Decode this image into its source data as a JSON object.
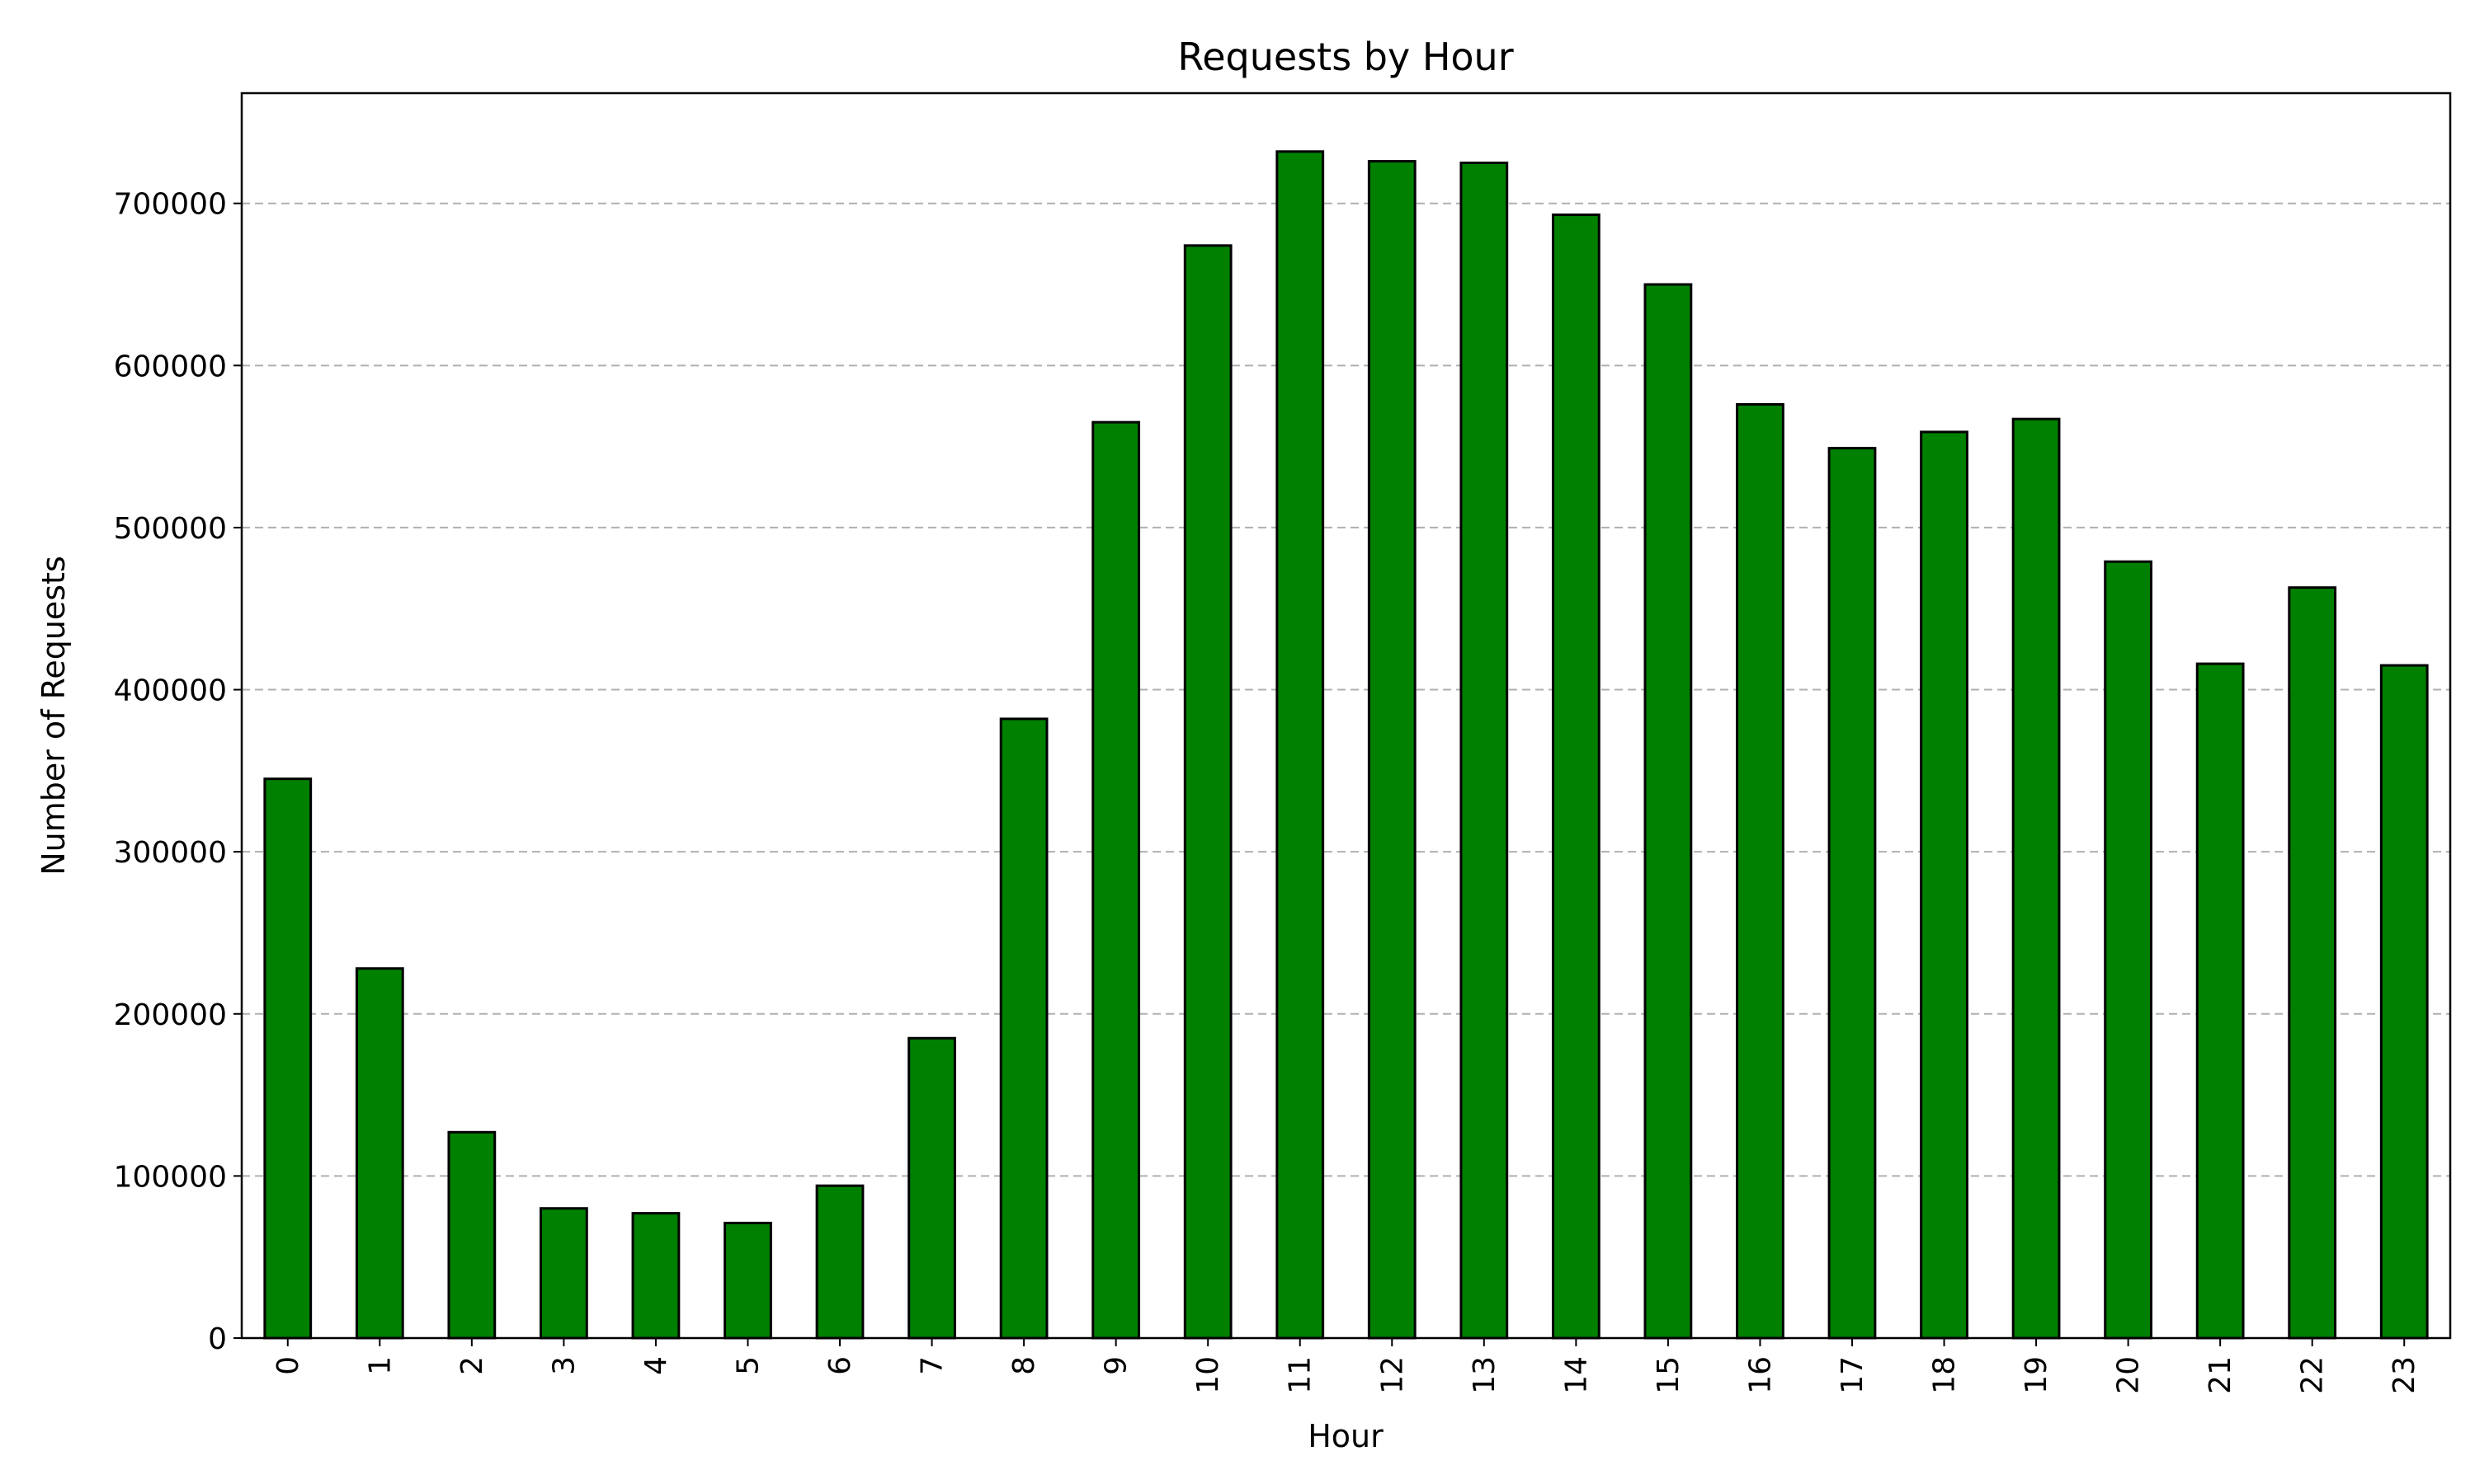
{
  "chart_data": {
    "type": "bar",
    "title": "Requests by Hour",
    "xlabel": "Hour",
    "ylabel": "Number of Requests",
    "categories": [
      "0",
      "1",
      "2",
      "3",
      "4",
      "5",
      "6",
      "7",
      "8",
      "9",
      "10",
      "11",
      "12",
      "13",
      "14",
      "15",
      "16",
      "17",
      "18",
      "19",
      "20",
      "21",
      "22",
      "23"
    ],
    "values": [
      345000,
      228000,
      127000,
      80000,
      77000,
      71000,
      94000,
      185000,
      382000,
      565000,
      674000,
      732000,
      726000,
      725000,
      693000,
      650000,
      576000,
      549000,
      559000,
      567000,
      479000,
      416000,
      463000,
      415000
    ],
    "ylim": [
      0,
      768000
    ],
    "yticks": [
      0,
      100000,
      200000,
      300000,
      400000,
      500000,
      600000,
      700000
    ],
    "ytick_labels": [
      "0",
      "100000",
      "200000",
      "300000",
      "400000",
      "500000",
      "600000",
      "700000"
    ],
    "grid": "y-dashed",
    "legend": "none",
    "bar_color": "#008000",
    "edge_color": "#000000"
  }
}
